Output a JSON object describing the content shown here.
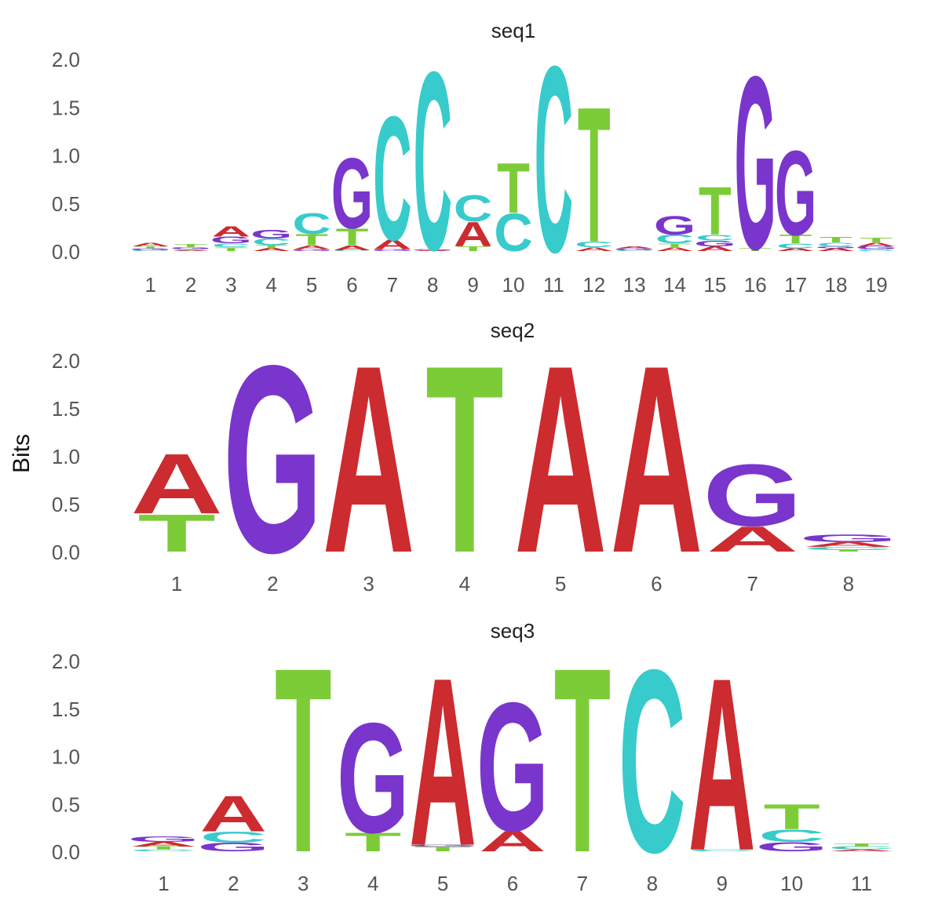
{
  "ylabel": "Bits",
  "colors": {
    "A": "#cc2b2f",
    "C": "#38cbcb",
    "G": "#7a35cc",
    "T": "#7ccc38"
  },
  "chart_data": [
    {
      "type": "sequence-logo",
      "title": "seq1",
      "ylabel": "Bits",
      "ylim": [
        0,
        2.0
      ],
      "yticks": [
        "0.0",
        "0.5",
        "1.0",
        "1.5",
        "2.0"
      ],
      "positions": [
        "1",
        "2",
        "3",
        "4",
        "5",
        "6",
        "7",
        "8",
        "9",
        "10",
        "11",
        "12",
        "13",
        "14",
        "15",
        "16",
        "17",
        "18",
        "19"
      ],
      "stacks": [
        [
          {
            "base": "C",
            "bits": 0.01
          },
          {
            "base": "G",
            "bits": 0.02
          },
          {
            "base": "T",
            "bits": 0.02
          },
          {
            "base": "A",
            "bits": 0.04
          }
        ],
        [
          {
            "base": "A",
            "bits": 0.01
          },
          {
            "base": "C",
            "bits": 0.01
          },
          {
            "base": "G",
            "bits": 0.02
          },
          {
            "base": "T",
            "bits": 0.03
          }
        ],
        [
          {
            "base": "T",
            "bits": 0.04
          },
          {
            "base": "C",
            "bits": 0.04
          },
          {
            "base": "G",
            "bits": 0.07
          },
          {
            "base": "A",
            "bits": 0.11
          }
        ],
        [
          {
            "base": "A",
            "bits": 0.03
          },
          {
            "base": "T",
            "bits": 0.03
          },
          {
            "base": "C",
            "bits": 0.07
          },
          {
            "base": "G",
            "bits": 0.09
          }
        ],
        [
          {
            "base": "G",
            "bits": 0.02
          },
          {
            "base": "A",
            "bits": 0.04
          },
          {
            "base": "T",
            "bits": 0.12
          },
          {
            "base": "C",
            "bits": 0.22
          }
        ],
        [
          {
            "base": "C",
            "bits": 0.01
          },
          {
            "base": "A",
            "bits": 0.05
          },
          {
            "base": "T",
            "bits": 0.18
          },
          {
            "base": "G",
            "bits": 0.75
          }
        ],
        [
          {
            "base": "G",
            "bits": 0.02
          },
          {
            "base": "A",
            "bits": 0.1
          },
          {
            "base": "C",
            "bits": 1.32
          }
        ],
        [
          {
            "base": "A",
            "bits": 0.01
          },
          {
            "base": "G",
            "bits": 0.01
          },
          {
            "base": "C",
            "bits": 1.9
          }
        ],
        [
          {
            "base": "T",
            "bits": 0.05
          },
          {
            "base": "A",
            "bits": 0.26
          },
          {
            "base": "C",
            "bits": 0.28
          }
        ],
        [
          {
            "base": "C",
            "bits": 0.4
          },
          {
            "base": "T",
            "bits": 0.53
          }
        ],
        [
          {
            "base": "C",
            "bits": 1.98
          }
        ],
        [
          {
            "base": "A",
            "bits": 0.04
          },
          {
            "base": "C",
            "bits": 0.06
          },
          {
            "base": "T",
            "bits": 1.44
          }
        ],
        [
          {
            "base": "C",
            "bits": 0.01
          },
          {
            "base": "G",
            "bits": 0.02
          },
          {
            "base": "A",
            "bits": 0.02
          }
        ],
        [
          {
            "base": "A",
            "bits": 0.04
          },
          {
            "base": "T",
            "bits": 0.04
          },
          {
            "base": "C",
            "bits": 0.09
          },
          {
            "base": "G",
            "bits": 0.2
          }
        ],
        [
          {
            "base": "A",
            "bits": 0.05
          },
          {
            "base": "G",
            "bits": 0.06
          },
          {
            "base": "C",
            "bits": 0.06
          },
          {
            "base": "T",
            "bits": 0.51
          }
        ],
        [
          {
            "base": "T",
            "bits": 0.03
          },
          {
            "base": "G",
            "bits": 1.84
          }
        ],
        [
          {
            "base": "A",
            "bits": 0.03
          },
          {
            "base": "C",
            "bits": 0.05
          },
          {
            "base": "T",
            "bits": 0.09
          },
          {
            "base": "G",
            "bits": 0.9
          }
        ],
        [
          {
            "base": "A",
            "bits": 0.03
          },
          {
            "base": "G",
            "bits": 0.02
          },
          {
            "base": "C",
            "bits": 0.04
          },
          {
            "base": "T",
            "bits": 0.06
          }
        ],
        [
          {
            "base": "C",
            "bits": 0.02
          },
          {
            "base": "G",
            "bits": 0.03
          },
          {
            "base": "A",
            "bits": 0.04
          },
          {
            "base": "T",
            "bits": 0.05
          }
        ]
      ]
    },
    {
      "type": "sequence-logo",
      "title": "seq2",
      "ylabel": "Bits",
      "ylim": [
        0,
        2.0
      ],
      "yticks": [
        "0.0",
        "0.5",
        "1.0",
        "1.5",
        "2.0"
      ],
      "positions": [
        "1",
        "2",
        "3",
        "4",
        "5",
        "6",
        "7",
        "8"
      ],
      "stacks": [
        [
          {
            "base": "T",
            "bits": 0.4
          },
          {
            "base": "A",
            "bits": 0.64
          }
        ],
        [
          {
            "base": "G",
            "bits": 2.0
          }
        ],
        [
          {
            "base": "A",
            "bits": 2.0
          }
        ],
        [
          {
            "base": "T",
            "bits": 2.0
          }
        ],
        [
          {
            "base": "A",
            "bits": 2.0
          }
        ],
        [
          {
            "base": "A",
            "bits": 2.0
          }
        ],
        [
          {
            "base": "A",
            "bits": 0.27
          },
          {
            "base": "G",
            "bits": 0.66
          }
        ],
        [
          {
            "base": "T",
            "bits": 0.02
          },
          {
            "base": "C",
            "bits": 0.03
          },
          {
            "base": "A",
            "bits": 0.05
          },
          {
            "base": "G",
            "bits": 0.08
          }
        ]
      ]
    },
    {
      "type": "sequence-logo",
      "title": "seq3",
      "ylabel": "Bits",
      "ylim": [
        0,
        2.0
      ],
      "yticks": [
        "0.0",
        "0.5",
        "1.0",
        "1.5",
        "2.0"
      ],
      "positions": [
        "1",
        "2",
        "3",
        "4",
        "5",
        "6",
        "7",
        "8",
        "9",
        "10",
        "11"
      ],
      "stacks": [
        [
          {
            "base": "C",
            "bits": 0.02
          },
          {
            "base": "T",
            "bits": 0.03
          },
          {
            "base": "A",
            "bits": 0.05
          },
          {
            "base": "G",
            "bits": 0.06
          }
        ],
        [
          {
            "base": "G",
            "bits": 0.09
          },
          {
            "base": "C",
            "bits": 0.12
          },
          {
            "base": "A",
            "bits": 0.38
          }
        ],
        [
          {
            "base": "T",
            "bits": 1.98
          }
        ],
        [
          {
            "base": "T",
            "bits": 0.2
          },
          {
            "base": "G",
            "bits": 1.18
          }
        ],
        [
          {
            "base": "T",
            "bits": 0.05
          },
          {
            "base": "G",
            "bits": 0.02
          },
          {
            "base": "A",
            "bits": 1.8
          }
        ],
        [
          {
            "base": "A",
            "bits": 0.22
          },
          {
            "base": "G",
            "bits": 1.38
          }
        ],
        [
          {
            "base": "T",
            "bits": 1.98
          }
        ],
        [
          {
            "base": "C",
            "bits": 1.96
          }
        ],
        [
          {
            "base": "C",
            "bits": 0.02
          },
          {
            "base": "A",
            "bits": 1.85
          }
        ],
        [
          {
            "base": "G",
            "bits": 0.1
          },
          {
            "base": "C",
            "bits": 0.13
          },
          {
            "base": "T",
            "bits": 0.27
          }
        ],
        [
          {
            "base": "A",
            "bits": 0.02
          },
          {
            "base": "C",
            "bits": 0.03
          },
          {
            "base": "T",
            "bits": 0.03
          }
        ]
      ]
    }
  ]
}
